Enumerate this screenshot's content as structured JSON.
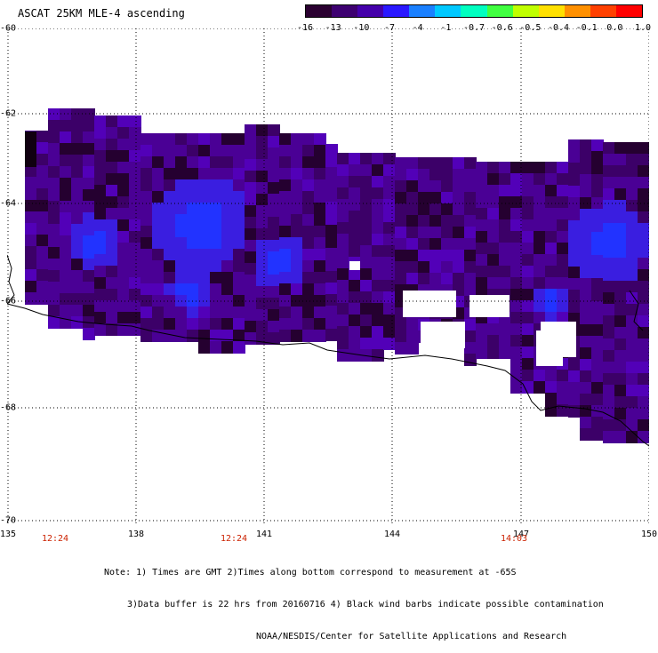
{
  "title": "ASCAT 25KM MLE-4 ascending",
  "colorbar": {
    "labels": [
      "-16",
      "-13",
      "-10",
      "-7",
      "-4",
      "-1",
      "-0.7",
      "-0.6",
      "-0.5",
      "-0.4",
      "-0.1",
      "0.0",
      "1.0"
    ],
    "colors": [
      "#2a0030",
      "#3d0070",
      "#4400aa",
      "#2a18ff",
      "#1a80ff",
      "#00c8ff",
      "#00ffc0",
      "#40ff40",
      "#c0ff00",
      "#ffe000",
      "#ff9000",
      "#ff4000",
      "#ff0000"
    ]
  },
  "axes": {
    "y_labels": [
      "-60",
      "-62",
      "-64",
      "-66",
      "-68",
      "-70"
    ],
    "x_labels": [
      "135",
      "138",
      "141",
      "144",
      "147",
      "150"
    ],
    "time_labels": [
      "12:24",
      "12:24",
      "14:03"
    ]
  },
  "notes": {
    "line1": "Note: 1) Times are GMT 2)Times along bottom correspond to measurement at -65S",
    "line2": "3)Data buffer is 22 hrs from 20160716 4) Black wind barbs indicate possible contamination",
    "line3": "NOAA/NESDIS/Center for Satellite Applications and Research"
  },
  "map_colors": {
    "deep": "#250030",
    "dark": "#3c0068",
    "purple": "#4a0095",
    "mid": "#5200b8",
    "blue": "#3a1ee0",
    "bright": "#2233ff"
  }
}
